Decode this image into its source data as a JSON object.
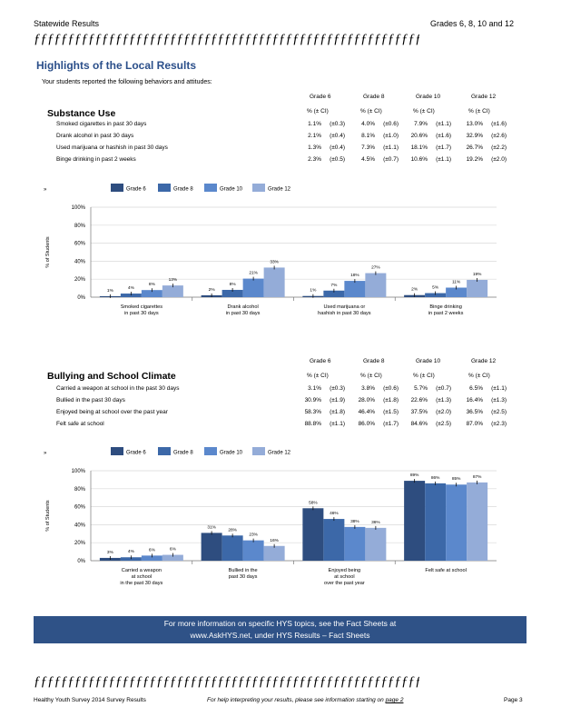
{
  "header": {
    "left": "Statewide   Results",
    "right": "Grades   6, 8, 10 and  12"
  },
  "divider": "ƒƒƒƒƒƒƒƒƒƒƒƒƒƒƒƒƒƒƒƒƒƒƒƒƒƒƒƒƒƒƒƒƒƒƒƒƒƒƒƒƒƒƒƒƒƒƒƒƒƒƒƒƒƒƒƒƒƒ",
  "title": "Highlights     of the  Local  Results",
  "intro": "Your  students   reported   the  following  behaviors  and  attitudes:",
  "grade_headers": [
    "Grade  6",
    "Grade  8",
    "Grade  10",
    "Grade  12"
  ],
  "col_header": "% (± CI)",
  "substance": {
    "title": "Substance    Use",
    "rows": [
      {
        "label": "Smoked   cigarettes   in past  30 days",
        "cells": [
          [
            "1.1%",
            "(±0.3)"
          ],
          [
            "4.0%",
            "(±0.6)"
          ],
          [
            "7.9%",
            "(±1.1)"
          ],
          [
            "13.0%",
            "(±1.6)"
          ]
        ]
      },
      {
        "label": "Drank  alcohol  in past  30 days",
        "cells": [
          [
            "2.1%",
            "(±0.4)"
          ],
          [
            "8.1%",
            "(±1.0)"
          ],
          [
            "20.6%",
            "(±1.6)"
          ],
          [
            "32.9%",
            "(±2.6)"
          ]
        ]
      },
      {
        "label": "Used  marijuana    or hashish   in past  30 days",
        "cells": [
          [
            "1.3%",
            "(±0.4)"
          ],
          [
            "7.3%",
            "(±1.1)"
          ],
          [
            "18.1%",
            "(±1.7)"
          ],
          [
            "26.7%",
            "(±2.2)"
          ]
        ]
      },
      {
        "label": "Binge  drinking   in past  2 weeks",
        "cells": [
          [
            "2.3%",
            "(±0.5)"
          ],
          [
            "4.5%",
            "(±0.7)"
          ],
          [
            "10.6%",
            "(±1.1)"
          ],
          [
            "19.2%",
            "(±2.0)"
          ]
        ]
      }
    ]
  },
  "bullying": {
    "title": "Bullying     and   School   Climate",
    "rows": [
      {
        "label": "Carried   a weapon    at school   in the  past  30 days",
        "cells": [
          [
            "3.1%",
            "(±0.3)"
          ],
          [
            "3.8%",
            "(±0.6)"
          ],
          [
            "5.7%",
            "(±0.7)"
          ],
          [
            "6.5%",
            "(±1.1)"
          ]
        ]
      },
      {
        "label": "Bullied   in the  past  30 days",
        "cells": [
          [
            "30.9%",
            "(±1.9)"
          ],
          [
            "28.0%",
            "(±1.8)"
          ],
          [
            "22.6%",
            "(±1.3)"
          ],
          [
            "16.4%",
            "(±1.3)"
          ]
        ]
      },
      {
        "label": "Enjoyed   being  at school   over  the  past  year",
        "cells": [
          [
            "58.3%",
            "(±1.8)"
          ],
          [
            "46.4%",
            "(±1.5)"
          ],
          [
            "37.5%",
            "(±2.0)"
          ],
          [
            "36.5%",
            "(±2.5)"
          ]
        ]
      },
      {
        "label": "Felt  safe  at school",
        "cells": [
          [
            "88.8%",
            "(±1.1)"
          ],
          [
            "86.0%",
            "(±1.7)"
          ],
          [
            "84.6%",
            "(±2.5)"
          ],
          [
            "87.0%",
            "(±2.3)"
          ]
        ]
      }
    ]
  },
  "colors": {
    "g6": "#2e4d7f",
    "g8": "#3c68a8",
    "g10": "#5b88cc",
    "g12": "#94acd8",
    "banner": "#2f5287",
    "title": "#2b4f8a"
  },
  "chart_data": [
    {
      "type": "bar",
      "title": "",
      "ylabel": "% of Students",
      "ylim": [
        0,
        100
      ],
      "yticks": [
        "0%",
        "20%",
        "40%",
        "60%",
        "80%",
        "100%"
      ],
      "legend": [
        "Grade  6",
        "Grade  8",
        "Grade  10",
        "Grade  12"
      ],
      "legend_corner": "»",
      "categories": [
        [
          "Smoked    cigarettes",
          "in past   30 days"
        ],
        [
          "Drank   alcohol",
          "in past   30 days"
        ],
        [
          "Used  marijuana     or",
          "hashish   in past   30 days"
        ],
        [
          "Binge   drinking",
          "in past   2 weeks"
        ]
      ],
      "series": [
        {
          "name": "Grade  6",
          "values": [
            1.1,
            2.1,
            1.3,
            2.3
          ],
          "labels": [
            "1%",
            "2%",
            "1%",
            "2%"
          ]
        },
        {
          "name": "Grade  8",
          "values": [
            4.0,
            8.1,
            7.3,
            4.5
          ],
          "labels": [
            "4%",
            "8%",
            "7%",
            "5%"
          ]
        },
        {
          "name": "Grade  10",
          "values": [
            7.9,
            20.6,
            18.1,
            10.6
          ],
          "labels": [
            "8%",
            "21%",
            "18%",
            "11%"
          ]
        },
        {
          "name": "Grade  12",
          "values": [
            13.0,
            32.9,
            26.7,
            19.2
          ],
          "labels": [
            "13%",
            "33%",
            "27%",
            "19%"
          ]
        }
      ]
    },
    {
      "type": "bar",
      "title": "",
      "ylabel": "% of Students",
      "ylim": [
        0,
        100
      ],
      "yticks": [
        "0%",
        "20%",
        "40%",
        "60%",
        "80%",
        "100%"
      ],
      "legend": [
        "Grade  6",
        "Grade  8",
        "Grade  10",
        "Grade  12"
      ],
      "legend_corner": "»",
      "categories": [
        [
          "Carried    a weapon",
          "at school",
          "in the  past  30 days"
        ],
        [
          "Bullied    in the",
          "past  30 days"
        ],
        [
          "Enjoyed     being",
          "at school",
          "over  the  past   year"
        ],
        [
          "Felt   safe   at school"
        ]
      ],
      "series": [
        {
          "name": "Grade  6",
          "values": [
            3.1,
            30.9,
            58.3,
            88.8
          ],
          "labels": [
            "3%",
            "31%",
            "58%",
            "89%"
          ]
        },
        {
          "name": "Grade  8",
          "values": [
            3.8,
            28.0,
            46.4,
            86.0
          ],
          "labels": [
            "4%",
            "28%",
            "46%",
            "86%"
          ]
        },
        {
          "name": "Grade  10",
          "values": [
            5.7,
            22.6,
            37.5,
            84.6
          ],
          "labels": [
            "6%",
            "23%",
            "38%",
            "85%"
          ]
        },
        {
          "name": "Grade  12",
          "values": [
            6.5,
            16.4,
            36.5,
            87.0
          ],
          "labels": [
            "6%",
            "16%",
            "36%",
            "87%"
          ]
        }
      ]
    }
  ],
  "banner": {
    "line1": "For  more  information     on specific   HYS  topics,   see  the  Fact  Sheets   at",
    "line2": "www.AskHYS.net,          under   HYS  Results    – Fact   Sheets"
  },
  "footer": {
    "left": "Healthy    Youth   Survey    2014  Survey   Results",
    "middle": "For  help  interpreting    your  results,  please   see  information    starting   on",
    "page_ref": "page  2",
    "right": "Page   3"
  }
}
